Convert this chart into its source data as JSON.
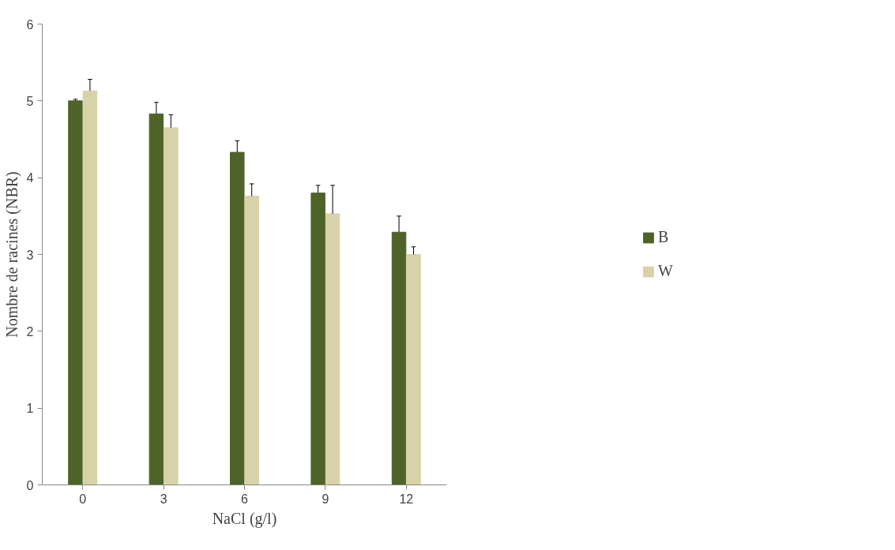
{
  "chart_data": {
    "type": "bar",
    "xlabel": "NaCl (g/l)",
    "ylabel": "Nombre de racines (NBR)",
    "categories": [
      "0",
      "3",
      "6",
      "9",
      "12"
    ],
    "series": [
      {
        "name": "B",
        "color": "#4f6228",
        "values": [
          5.0,
          4.83,
          4.33,
          3.8,
          3.29
        ],
        "errors": [
          [
            5.0,
            5.02
          ],
          [
            4.83,
            4.98
          ],
          [
            4.33,
            4.48
          ],
          [
            3.8,
            3.9
          ],
          [
            3.29,
            3.5
          ]
        ]
      },
      {
        "name": "W",
        "color": "#d8d2a8",
        "values": [
          5.13,
          4.65,
          3.76,
          3.53,
          3.0
        ],
        "errors": [
          [
            5.13,
            5.28
          ],
          [
            4.65,
            4.82
          ],
          [
            3.76,
            3.92
          ],
          [
            3.53,
            3.9
          ],
          [
            3.0,
            3.1
          ]
        ]
      }
    ],
    "ylim": [
      0,
      6
    ],
    "yticks": [
      0,
      1,
      2,
      3,
      4,
      5,
      6
    ],
    "grid": false,
    "legend": "right"
  }
}
